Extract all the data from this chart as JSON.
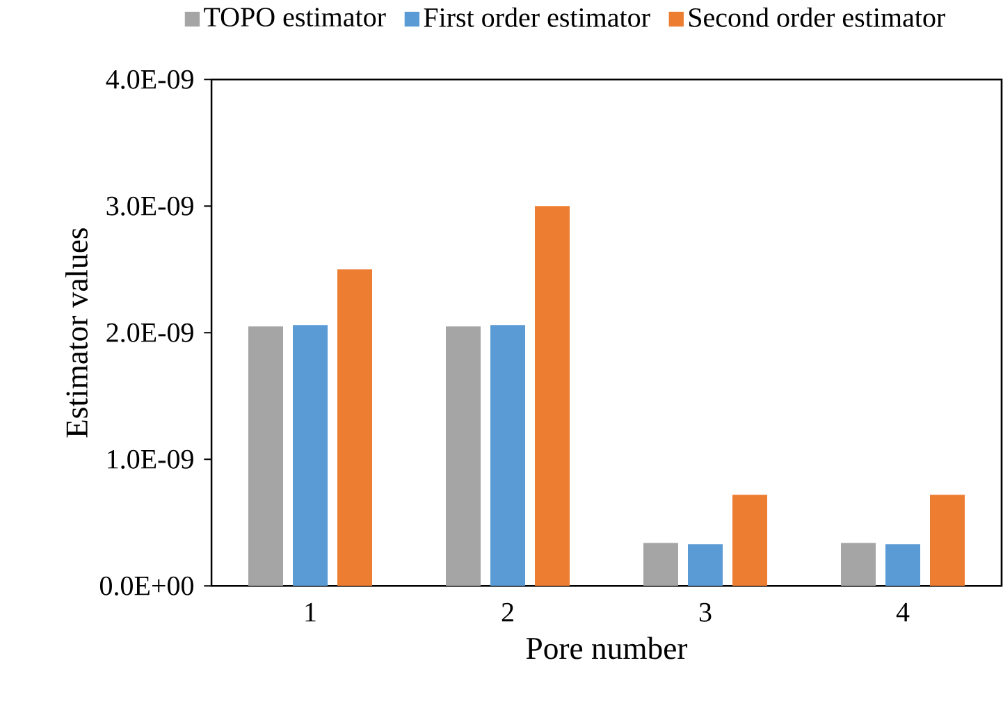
{
  "chart_data": {
    "type": "bar",
    "xlabel": "Pore number",
    "ylabel": "Estimator values",
    "categories": [
      "1",
      "2",
      "3",
      "4"
    ],
    "series": [
      {
        "name": "TOPO estimator",
        "color": "#a5a5a5",
        "values": [
          2.05e-09,
          2.05e-09,
          3.4e-10,
          3.4e-10
        ]
      },
      {
        "name": "First order estimator",
        "color": "#5b9bd5",
        "values": [
          2.06e-09,
          2.06e-09,
          3.3e-10,
          3.3e-10
        ]
      },
      {
        "name": "Second order estimator",
        "color": "#ed7d31",
        "values": [
          2.5e-09,
          3e-09,
          7.2e-10,
          7.2e-10
        ]
      }
    ],
    "ylim": [
      0,
      4e-09
    ],
    "yticks": [
      {
        "value": 0,
        "label": "0.0E+00"
      },
      {
        "value": 1e-09,
        "label": "1.0E-09"
      },
      {
        "value": 2e-09,
        "label": "2.0E-09"
      },
      {
        "value": 3e-09,
        "label": "3.0E-09"
      },
      {
        "value": 4e-09,
        "label": "4.0E-09"
      }
    ],
    "legend": "top",
    "grid": false
  }
}
